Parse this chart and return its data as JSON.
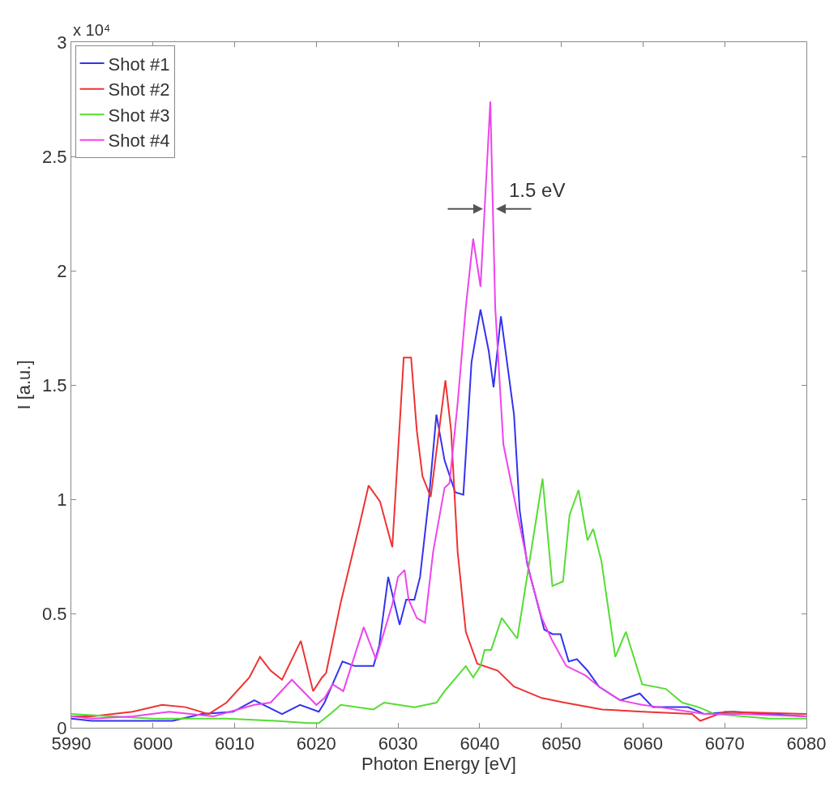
{
  "chart_data": {
    "type": "line",
    "xlabel": "Photon Energy [eV]",
    "ylabel": "I [a.u.]",
    "xlim": [
      5990,
      6080
    ],
    "xticks": [
      5990,
      6000,
      6010,
      6020,
      6030,
      6040,
      6050,
      6060,
      6070,
      6080
    ],
    "ylim": [
      0,
      3
    ],
    "yticks": [
      0,
      0.5,
      1,
      1.5,
      2,
      2.5,
      3
    ],
    "grid": false,
    "legend": "top left",
    "marker": "none",
    "line_style": "solid",
    "annotations": [
      "x 10⁴",
      {
        "text": "1.5 eV",
        "x": 6041.2,
        "y": 2.27
      }
    ],
    "series": [
      {
        "name": "Shot #1",
        "color": "#3333ee",
        "x": [
          5990,
          5992.5,
          6002.4,
          6006,
          6009.8,
          6012.4,
          6015.8,
          6018,
          6020.3,
          6021,
          6023.2,
          6024.7,
          6027,
          6027.7,
          6028.8,
          6030.2,
          6031,
          6032,
          6032.7,
          6033.8,
          6034.7,
          6035.7,
          6037,
          6038,
          6039,
          6040.1,
          6041.1,
          6041.7,
          6042.6,
          6044.2,
          6044.9,
          6045.8,
          6047.9,
          6048.9,
          6049.9,
          6050.9,
          6051.9,
          6053.2,
          6054.6,
          6057.2,
          6059.6,
          6061.2,
          6065.5,
          6067.5,
          6071,
          6080
        ],
        "values": [
          0.04,
          0.03,
          0.03,
          0.06,
          0.07,
          0.12,
          0.06,
          0.1,
          0.07,
          0.11,
          0.29,
          0.27,
          0.27,
          0.36,
          0.66,
          0.45,
          0.56,
          0.56,
          0.66,
          1.01,
          1.37,
          1.17,
          1.03,
          1.02,
          1.6,
          1.83,
          1.65,
          1.49,
          1.8,
          1.37,
          0.95,
          0.72,
          0.43,
          0.41,
          0.41,
          0.29,
          0.3,
          0.25,
          0.18,
          0.12,
          0.15,
          0.09,
          0.09,
          0.06,
          0.07,
          0.05
        ]
      },
      {
        "name": "Shot #2",
        "color": "#ee3333",
        "x": [
          5990,
          5992.5,
          5997.5,
          6001.1,
          6004,
          6006.8,
          6009,
          6011.8,
          6013.1,
          6014.4,
          6015.8,
          6018.1,
          6019.6,
          6020.7,
          6021.2,
          6023,
          6025.3,
          6026.4,
          6027.8,
          6029.3,
          6030.7,
          6031.6,
          6032.3,
          6033,
          6034,
          6035.8,
          6036.5,
          6037.3,
          6038.3,
          6039.7,
          6042.2,
          6044.2,
          6047.6,
          6050.4,
          6055,
          6060,
          6066,
          6067,
          6070,
          6080
        ],
        "values": [
          0.05,
          0.05,
          0.07,
          0.1,
          0.09,
          0.06,
          0.11,
          0.22,
          0.31,
          0.25,
          0.21,
          0.38,
          0.16,
          0.22,
          0.24,
          0.55,
          0.89,
          1.06,
          0.99,
          0.79,
          1.62,
          1.62,
          1.3,
          1.1,
          1.01,
          1.52,
          1.3,
          0.77,
          0.42,
          0.28,
          0.25,
          0.18,
          0.13,
          0.11,
          0.08,
          0.07,
          0.06,
          0.03,
          0.07,
          0.06
        ]
      },
      {
        "name": "Shot #3",
        "color": "#55dd33",
        "x": [
          5990,
          5995,
          6000,
          6005,
          6009,
          6015,
          6019,
          6020.3,
          6021.7,
          6023,
          6027,
          6028.3,
          6032,
          6034.7,
          6035.7,
          6038.3,
          6039.2,
          6040.1,
          6040.6,
          6041.4,
          6042.7,
          6044.6,
          6046.2,
          6047.7,
          6048.9,
          6050.2,
          6051,
          6052.1,
          6053.2,
          6053.9,
          6054.9,
          6056.6,
          6057.9,
          6059.9,
          6062.8,
          6064.8,
          6066.8,
          6068.8,
          6075.5,
          6080
        ],
        "values": [
          0.06,
          0.05,
          0.04,
          0.04,
          0.04,
          0.03,
          0.02,
          0.02,
          0.06,
          0.1,
          0.08,
          0.11,
          0.09,
          0.11,
          0.16,
          0.27,
          0.22,
          0.27,
          0.34,
          0.34,
          0.48,
          0.39,
          0.75,
          1.09,
          0.62,
          0.64,
          0.93,
          1.04,
          0.82,
          0.87,
          0.73,
          0.31,
          0.42,
          0.19,
          0.17,
          0.11,
          0.09,
          0.06,
          0.04,
          0.04
        ]
      },
      {
        "name": "Shot #4",
        "color": "#ee44ee",
        "x": [
          5990,
          5992.5,
          5997.5,
          6002,
          6007.4,
          6012.4,
          6014.4,
          6017,
          6020,
          6021,
          6022,
          6023.3,
          6025.8,
          6027.3,
          6029.3,
          6030,
          6030.8,
          6031.3,
          6032.3,
          6033.3,
          6034.3,
          6035.7,
          6036.3,
          6037.3,
          6038.3,
          6039.2,
          6040.1,
          6041.3,
          6041.9,
          6042.9,
          6044.2,
          6046.2,
          6047.6,
          6048.9,
          6050.6,
          6052.9,
          6054.6,
          6057.2,
          6059.9,
          6062,
          6067.5,
          6072,
          6080
        ],
        "values": [
          0.05,
          0.04,
          0.05,
          0.07,
          0.05,
          0.1,
          0.11,
          0.21,
          0.1,
          0.13,
          0.19,
          0.16,
          0.44,
          0.3,
          0.54,
          0.66,
          0.69,
          0.56,
          0.48,
          0.46,
          0.77,
          1.05,
          1.07,
          1.42,
          1.84,
          2.14,
          1.93,
          2.74,
          1.84,
          1.24,
          1.01,
          0.66,
          0.48,
          0.38,
          0.27,
          0.23,
          0.18,
          0.12,
          0.1,
          0.09,
          0.06,
          0.06,
          0.05
        ]
      }
    ]
  }
}
